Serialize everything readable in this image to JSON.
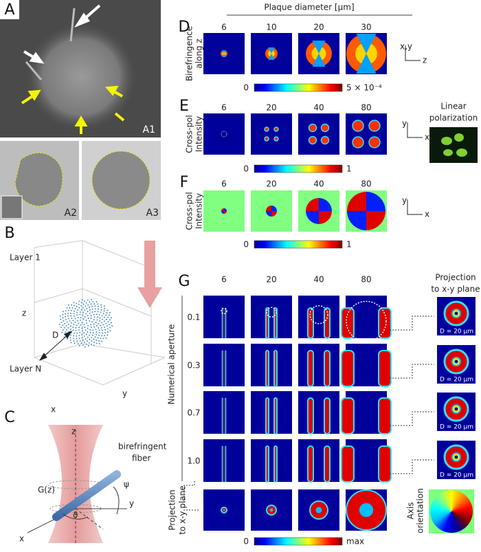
{
  "panel_labels": [
    "A",
    "B",
    "C",
    "D",
    "E",
    "F",
    "G"
  ],
  "A": {
    "sublabels": [
      "A1",
      "A2",
      "A3"
    ]
  },
  "B": {
    "layer_top": "Layer 1",
    "z_axis": "z",
    "layer_bottom": "Layer N",
    "diameter": "D",
    "x_axis": "x",
    "y_axis": "y"
  },
  "C": {
    "z_axis": "z",
    "beam": "G(z)",
    "fiber": [
      "birefringent",
      "fiber"
    ],
    "azimuth": "ψ",
    "y_axis": "y",
    "x_axis": "x",
    "tilt": "ϑ"
  },
  "D": {
    "header": "Plaque diameter [µm]",
    "columns": [
      "6",
      "10",
      "20",
      "30"
    ],
    "row_label": [
      "Birefringence",
      "along z"
    ],
    "axes": [
      "x,y",
      "z"
    ],
    "colorbar": [
      "0",
      "5 × 10⁻⁴"
    ]
  },
  "E": {
    "columns": [
      "6",
      "20",
      "40",
      "80"
    ],
    "row_label": [
      "Cross-pol",
      "Intensity"
    ],
    "axes": [
      "y",
      "x"
    ],
    "colorbar": [
      "0",
      "1"
    ],
    "inset_title": [
      "Linear",
      "polarization"
    ]
  },
  "F": {
    "columns": [
      "6",
      "20",
      "40",
      "80"
    ],
    "row_label": [
      "Cross-pol",
      "Intensity"
    ],
    "axes": [
      "y",
      "x"
    ],
    "colorbar": [
      "0",
      "1"
    ]
  },
  "G": {
    "columns": [
      "6",
      "20",
      "40",
      "80"
    ],
    "row_title": "Numerical aperture",
    "rows": [
      "0.1",
      "0.3",
      "0.7",
      "1.0"
    ],
    "projection_title": [
      "Projection",
      "to x-y plane"
    ],
    "projection_labels": [
      "D = 20 µm",
      "D = 20 µm",
      "D = 20 µm",
      "D = 20 µm"
    ],
    "bottom_row_label": [
      "Projection",
      "to x-y plane"
    ],
    "axis_title": [
      "Axis",
      "orientation"
    ],
    "colorbar": [
      "0",
      "max"
    ]
  }
}
